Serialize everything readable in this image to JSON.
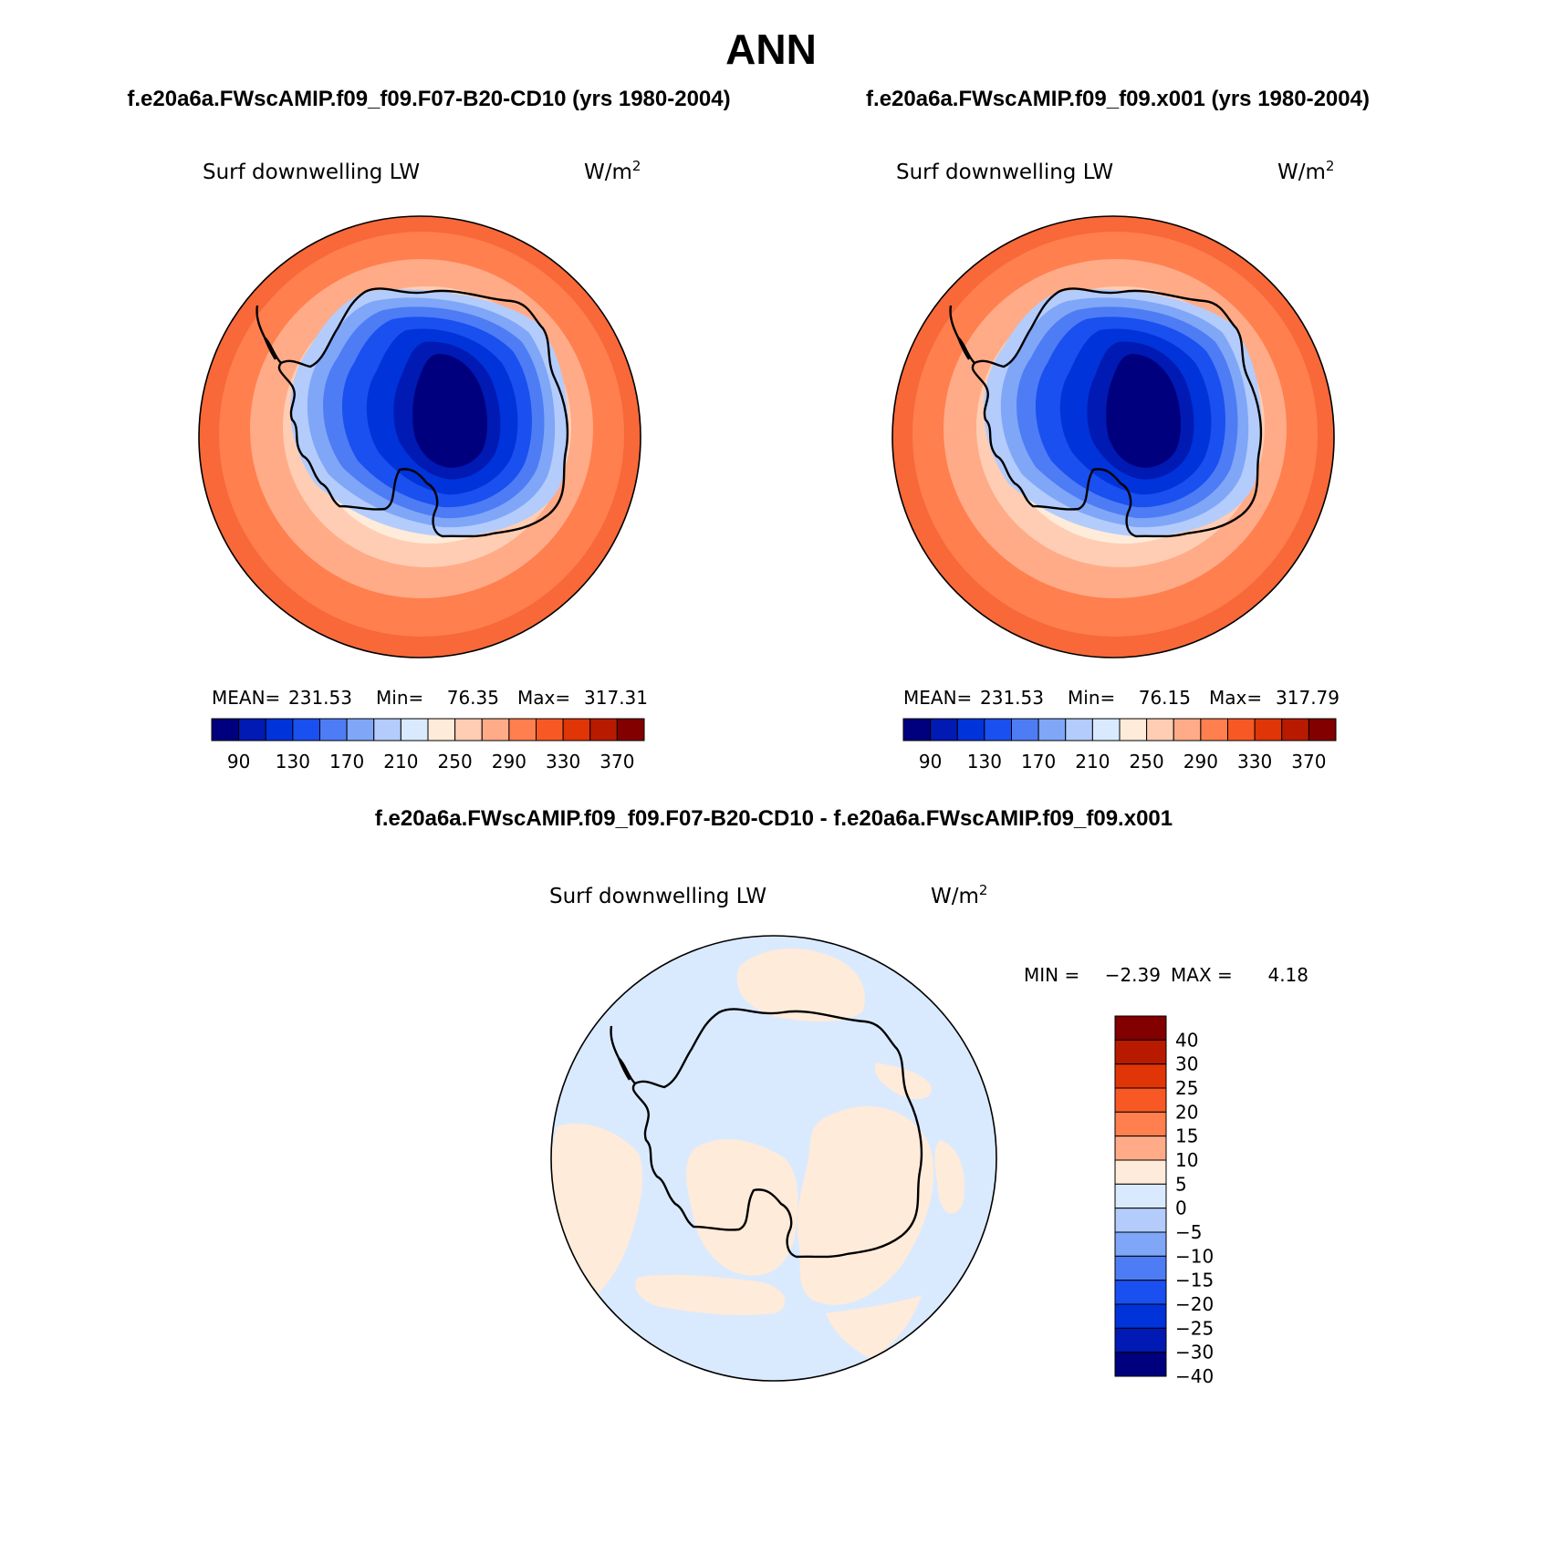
{
  "figure": {
    "title": "ANN"
  },
  "panels": [
    {
      "case_title": "f.e20a6a.FWscAMIP.f09_f09.F07-B20-CD10 (yrs 1980-2004)",
      "variable": "Surf downwelling LW",
      "units_base": "W/m",
      "units_exp": "2",
      "stats": {
        "mean_label": "MEAN=",
        "mean": "231.53",
        "min_label": "Min=",
        "min": "76.35",
        "max_label": "Max=",
        "max": "317.31"
      }
    },
    {
      "case_title": "f.e20a6a.FWscAMIP.f09_f09.x001 (yrs 1980-2004)",
      "variable": "Surf downwelling LW",
      "units_base": "W/m",
      "units_exp": "2",
      "stats": {
        "mean_label": "MEAN=",
        "mean": "231.53",
        "min_label": "Min=",
        "min": "76.15",
        "max_label": "Max=",
        "max": "317.79"
      }
    },
    {
      "case_title": "f.e20a6a.FWscAMIP.f09_f09.F07-B20-CD10 - f.e20a6a.FWscAMIP.f09_f09.x001",
      "variable": "Surf downwelling LW",
      "units_base": "W/m",
      "units_exp": "2",
      "stats": {
        "min_label": "MIN =",
        "min": "−2.39",
        "max_label": "MAX =",
        "max": "4.18"
      }
    }
  ],
  "colorbar_fields": {
    "colors": [
      "#00007e",
      "#001ab3",
      "#0033d9",
      "#1a4ff0",
      "#4d7cf5",
      "#80a6f8",
      "#b3ccfb",
      "#d9eaff",
      "#ffebd9",
      "#ffcdb3",
      "#ffab87",
      "#ff7f4f",
      "#f85924",
      "#e03506",
      "#b81a00",
      "#830000"
    ],
    "tick_labels": [
      "90",
      "130",
      "170",
      "210",
      "250",
      "290",
      "330",
      "370"
    ]
  },
  "colorbar_diff": {
    "colors": [
      "#830000",
      "#b81a00",
      "#e03506",
      "#f85924",
      "#ff7f4f",
      "#ffab87",
      "#ffebd9",
      "#d9eaff",
      "#b3ccfb",
      "#80a6f8",
      "#4d7cf5",
      "#1a4ff0",
      "#0033d9",
      "#001ab3",
      "#00007e"
    ],
    "tick_labels": [
      "40",
      "30",
      "25",
      "20",
      "15",
      "10",
      "5",
      "0",
      "−5",
      "−10",
      "−15",
      "−20",
      "−25",
      "−30",
      "−40"
    ]
  },
  "map_colors": {
    "coast": "#000000",
    "diff_positive": "#ffebd9",
    "diff_negative": "#d9eaff"
  }
}
